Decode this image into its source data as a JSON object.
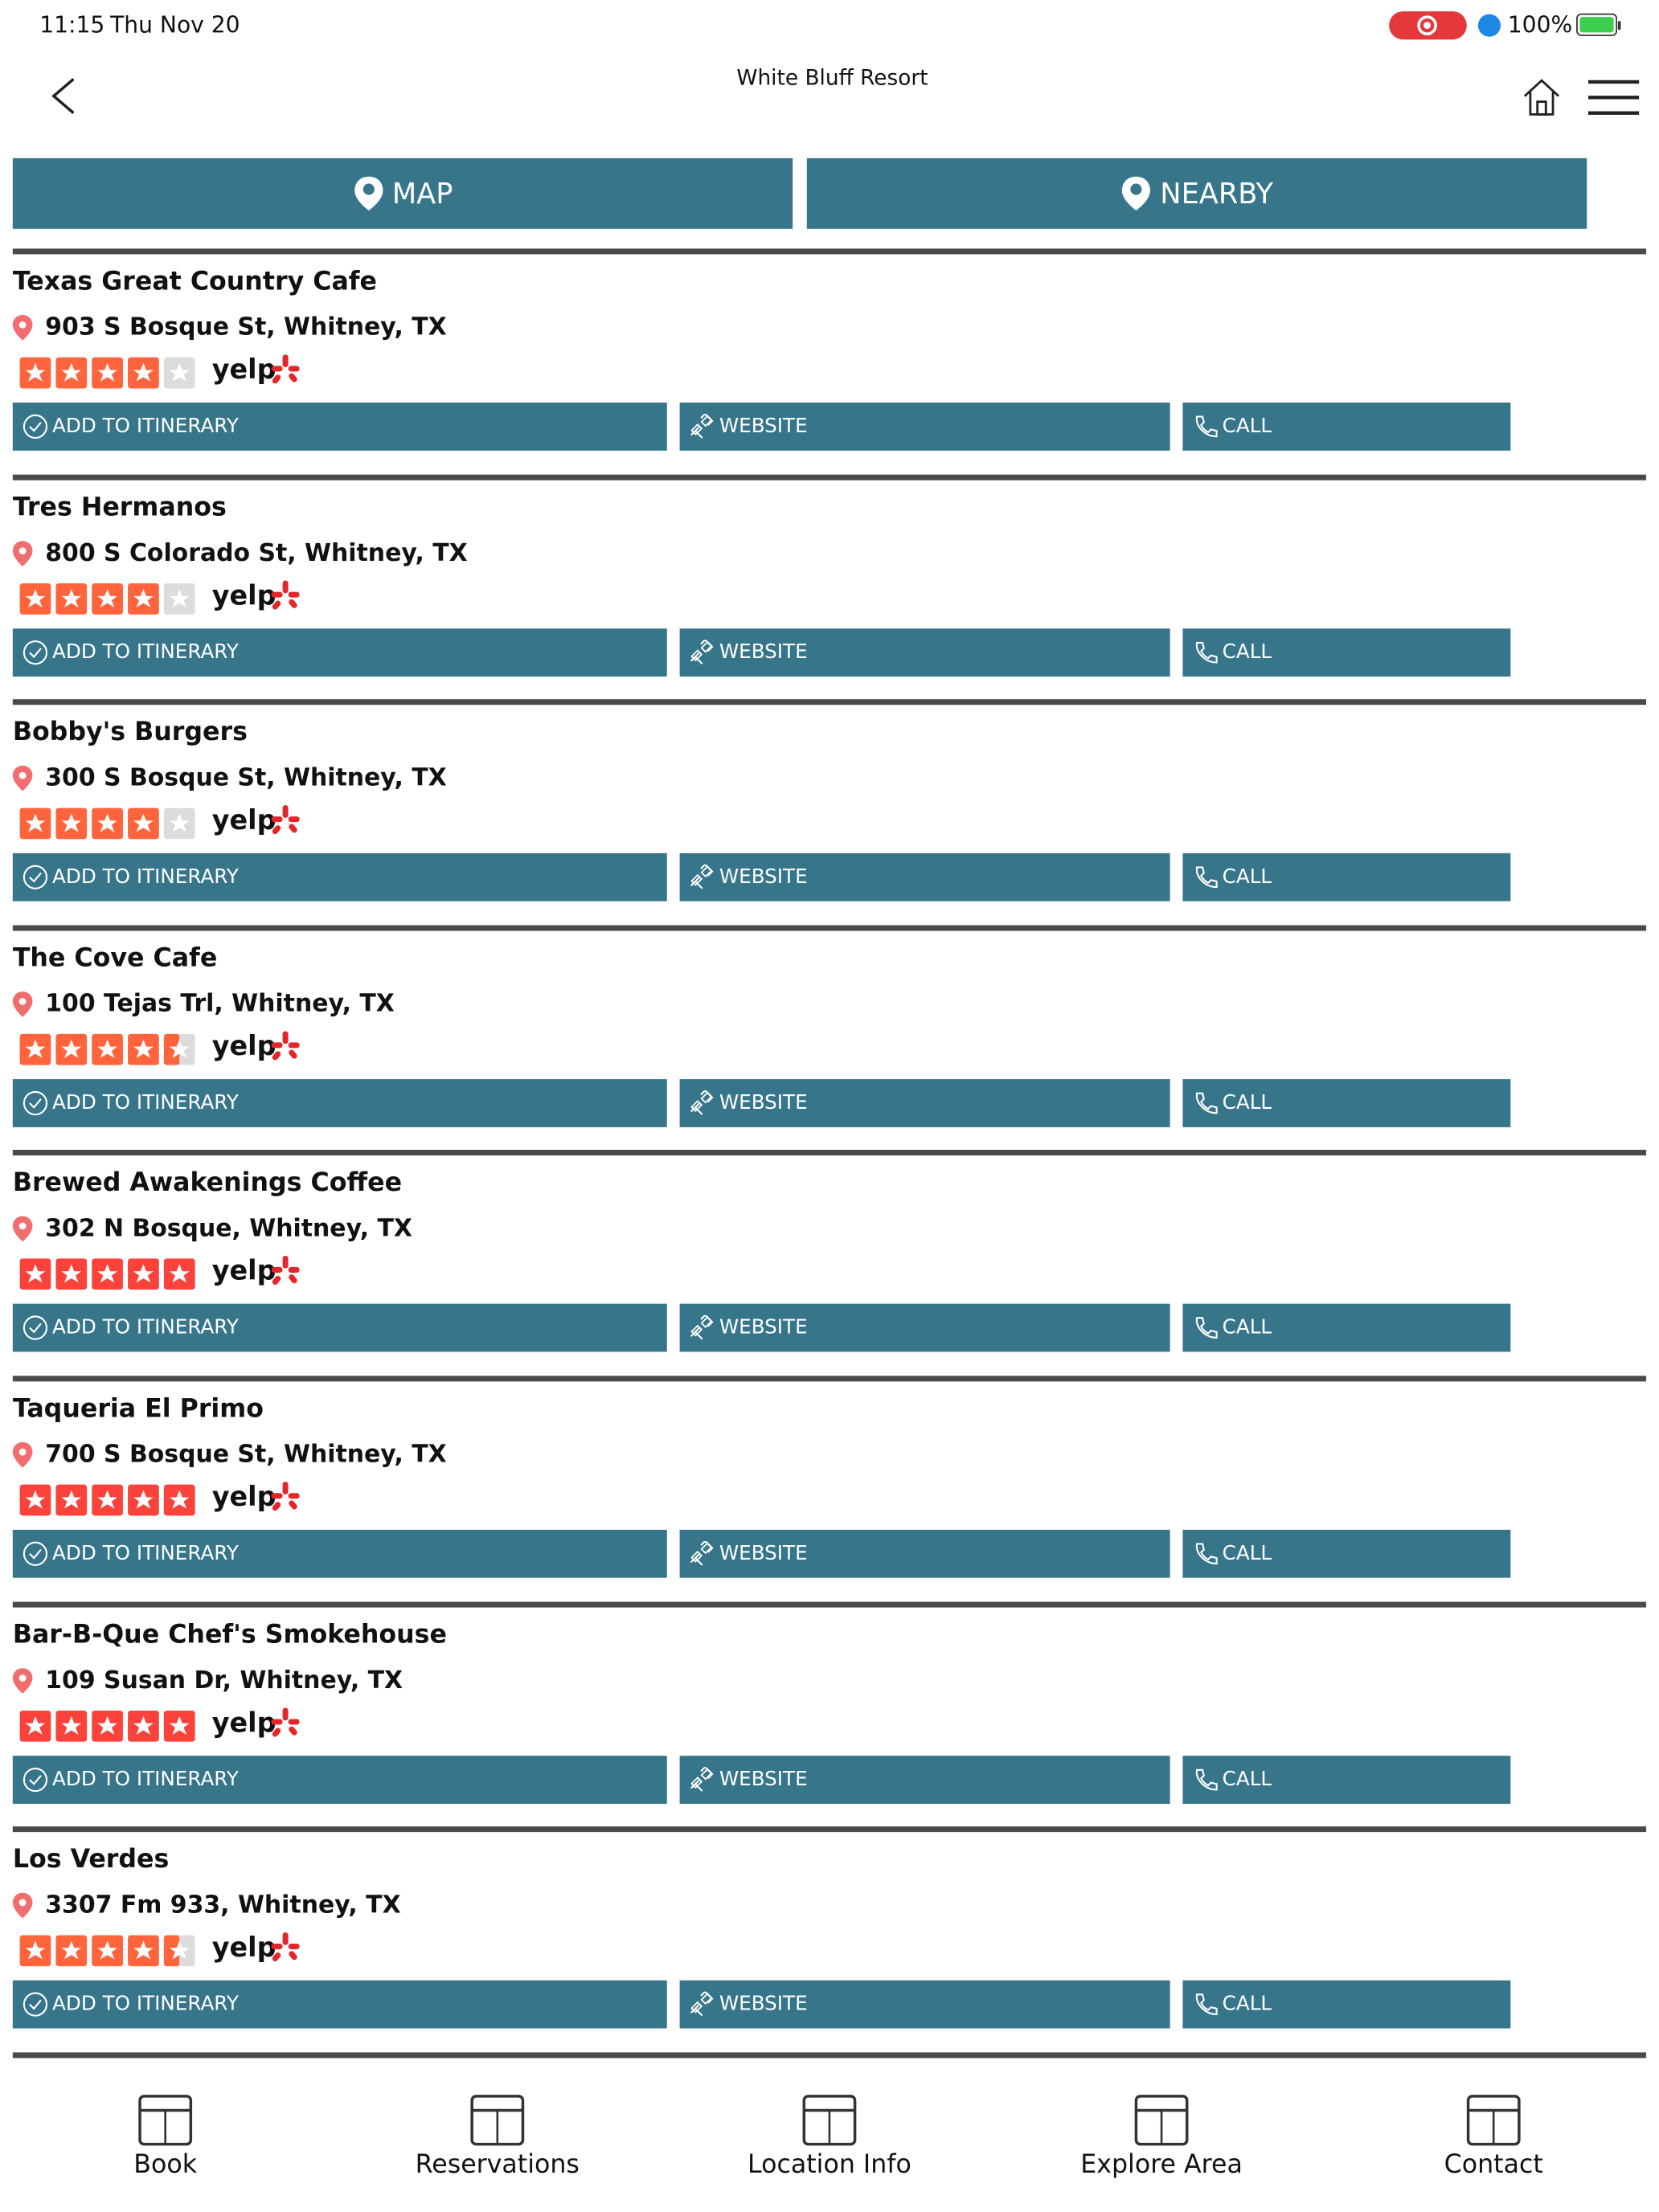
{
  "status_bar": {
    "time": "11:15",
    "date": "Thu Nov 20",
    "battery": "100%"
  },
  "header": {
    "title": "White Bluff Resort"
  },
  "tabs": [
    "MAP",
    "NEARBY"
  ],
  "actions": [
    "ADD TO ITINERARY",
    "WEBSITE",
    "CALL"
  ],
  "brand": "yelp",
  "listings": [
    {
      "name": "Texas Great Country Cafe",
      "address": "903 S Bosque St, Whitney, TX",
      "rating": 4
    },
    {
      "name": "Tres Hermanos",
      "address": "800 S Colorado St, Whitney, TX",
      "rating": 4
    },
    {
      "name": "Bobby's Burgers",
      "address": "300 S Bosque St, Whitney, TX",
      "rating": 4
    },
    {
      "name": "The Cove Cafe",
      "address": "100 Tejas Trl, Whitney, TX",
      "rating": 4.5
    },
    {
      "name": "Brewed Awakenings Coffee",
      "address": "302 N Bosque, Whitney, TX",
      "rating": 5
    },
    {
      "name": "Taqueria El Primo",
      "address": "700 S Bosque St, Whitney, TX",
      "rating": 5
    },
    {
      "name": "Bar-B-Que Chef's Smokehouse",
      "address": "109 Susan Dr, Whitney, TX",
      "rating": 5
    },
    {
      "name": "Los Verdes",
      "address": "3307 Fm 933, Whitney, TX",
      "rating": 4.5
    }
  ],
  "nav": [
    "Book",
    "Reservations",
    "Location Info",
    "Explore Area",
    "Contact"
  ]
}
